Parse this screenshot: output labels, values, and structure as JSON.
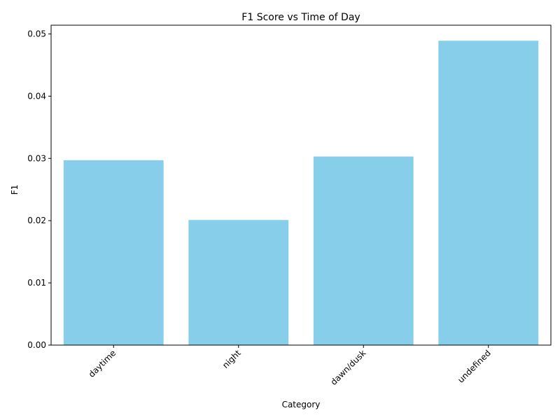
{
  "chart_data": {
    "type": "bar",
    "title": "F1 Score vs Time of Day",
    "xlabel": "Category",
    "ylabel": "F1",
    "categories": [
      "daytime",
      "night",
      "dawn/dusk",
      "undefined"
    ],
    "values": [
      0.0297,
      0.0201,
      0.0303,
      0.0489
    ],
    "ylim": [
      0,
      0.0514
    ],
    "yticks": [
      "0.00",
      "0.01",
      "0.02",
      "0.03",
      "0.04",
      "0.05"
    ],
    "ytick_values": [
      0,
      0.01,
      0.02,
      0.03,
      0.04,
      0.05
    ],
    "bar_color": "#87ceeb",
    "grid": false,
    "xtick_rotation_deg": 45
  }
}
